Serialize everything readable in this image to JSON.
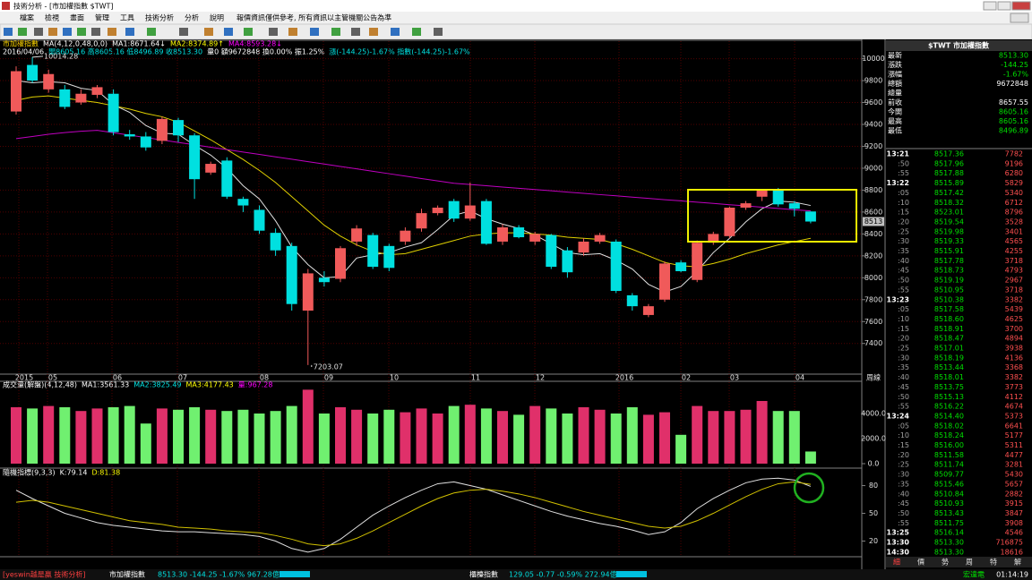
{
  "window": {
    "title": "技術分析 - [市加權指數 $TWT]",
    "menu": [
      "檔案",
      "檢視",
      "畫面",
      "管理",
      "工具",
      "技術分析",
      "分析",
      "說明"
    ],
    "notice": "報價資訊僅供參考, 所有資訊以主管機關公告為準"
  },
  "chart_data": [
    {
      "type": "candlestick",
      "legend": [
        {
          "text": "市加權指數",
          "color": "#ffd700"
        },
        {
          "text": "MA(4,12,0,48,0,0)",
          "color": "#ffffff"
        },
        {
          "text": "MA1:8671.64↓",
          "color": "#ffffff"
        },
        {
          "text": "MA2:8374.89↑",
          "color": "#ffff00"
        },
        {
          "text": "MA4:8593.28↓",
          "color": "#ff00ff"
        }
      ],
      "info": [
        {
          "text": "2016/04/06",
          "color": "#ffffff"
        },
        {
          "text": "開8605.16 高8605.16 低8496.89 收8513.30",
          "color": "#00e0e0"
        },
        {
          "text": "量0 額9672848 換0.00% 振1.25%",
          "color": "#ffffff"
        },
        {
          "text": "漲(-144.25)-1.67% 指數(-144.25)-1.67%",
          "color": "#00e0e0"
        }
      ],
      "x_labels": [
        "2015",
        "05",
        "06",
        "07",
        "08",
        "09",
        "10",
        "11",
        "12",
        "2016",
        "02",
        "03",
        "04"
      ],
      "ylim": [
        7120,
        10160
      ],
      "yticks": [
        7400,
        7600,
        7800,
        8000,
        8200,
        8400,
        8600,
        8800,
        9000,
        9200,
        9400,
        9600,
        9800,
        10000
      ],
      "grid": true,
      "up_color": "#f05a5a",
      "down_color": "#00e0e0",
      "open": [
        9518,
        9943,
        9720,
        9720,
        9600,
        9670,
        9680,
        9310,
        9290,
        9250,
        9440,
        9300,
        8960,
        9070,
        8720,
        8620,
        8410,
        8290,
        7700,
        8000,
        7990,
        8330,
        8390,
        8290,
        8330,
        8450,
        8590,
        8700,
        8540,
        8700,
        8330,
        8460,
        8330,
        8390,
        8250,
        8230,
        8330,
        8330,
        7840,
        7660,
        7800,
        8140,
        7980,
        8320,
        8380,
        8640,
        8740,
        8800,
        8680,
        8605.16
      ],
      "high": [
        9930,
        10014.28,
        9900,
        9760,
        9720,
        9760,
        9720,
        9350,
        9330,
        9470,
        9460,
        9320,
        9060,
        9100,
        8740,
        8660,
        8450,
        8320,
        8080,
        8060,
        8290,
        8480,
        8410,
        8310,
        8460,
        8630,
        8660,
        8720,
        8870,
        8720,
        8490,
        8480,
        8420,
        8400,
        8280,
        8360,
        8410,
        8350,
        7860,
        7760,
        8150,
        8160,
        8340,
        8420,
        8650,
        8700,
        8810,
        8820,
        8700,
        8605.16
      ],
      "low": [
        9490,
        9780,
        9690,
        9540,
        9580,
        9640,
        9300,
        9260,
        9160,
        9220,
        9240,
        8720,
        8940,
        8720,
        8600,
        8400,
        8200,
        7700,
        7203.07,
        7920,
        7960,
        8290,
        8080,
        8060,
        8300,
        8420,
        8570,
        8510,
        8520,
        8300,
        8300,
        8360,
        8300,
        8080,
        8000,
        8200,
        8310,
        7860,
        7700,
        7640,
        7780,
        8050,
        7960,
        8300,
        8360,
        8620,
        8700,
        8650,
        8560,
        8496.89
      ],
      "close": [
        9886,
        9800,
        9860,
        9560,
        9680,
        9740,
        9330,
        9290,
        9190,
        9450,
        9300,
        8900,
        9040,
        8740,
        8660,
        8430,
        8250,
        7760,
        8040,
        7960,
        8270,
        8450,
        8100,
        8090,
        8430,
        8590,
        8640,
        8540,
        8660,
        8310,
        8460,
        8370,
        8400,
        8100,
        8050,
        8330,
        8390,
        7880,
        7740,
        7740,
        8130,
        8060,
        8320,
        8400,
        8640,
        8680,
        8800,
        8670,
        8630,
        8513.3
      ],
      "series": [
        {
          "color": "#e0e0e0",
          "values": [
            9800,
            9780,
            9790,
            9780,
            9730,
            9710,
            9580,
            9510,
            9390,
            9320,
            9310,
            9210,
            9120,
            9000,
            8840,
            8720,
            8520,
            8280,
            8120,
            8000,
            8010,
            8180,
            8210,
            8230,
            8280,
            8320,
            8440,
            8570,
            8610,
            8540,
            8490,
            8450,
            8390,
            8310,
            8230,
            8210,
            8220,
            8160,
            8080,
            7940,
            7870,
            7920,
            8060,
            8230,
            8360,
            8510,
            8630,
            8700,
            8690,
            8660
          ]
        },
        {
          "color": "#e0d000",
          "values": [
            9620,
            9650,
            9660,
            9640,
            9620,
            9600,
            9570,
            9540,
            9500,
            9470,
            9420,
            9340,
            9260,
            9170,
            9080,
            8980,
            8870,
            8740,
            8610,
            8480,
            8380,
            8300,
            8240,
            8210,
            8220,
            8260,
            8300,
            8340,
            8380,
            8400,
            8410,
            8410,
            8400,
            8390,
            8370,
            8360,
            8350,
            8310,
            8260,
            8200,
            8140,
            8110,
            8100,
            8130,
            8170,
            8220,
            8260,
            8300,
            8330,
            8360
          ]
        },
        {
          "color": "#c000c0",
          "values": [
            9270,
            9290,
            9310,
            9325,
            9338,
            9346,
            9324,
            9302,
            9280,
            9258,
            9236,
            9214,
            9192,
            9170,
            9148,
            9126,
            9104,
            9082,
            9060,
            9038,
            9016,
            8994,
            8972,
            8950,
            8928,
            8906,
            8884,
            8863,
            8851,
            8840,
            8828,
            8817,
            8805,
            8794,
            8782,
            8771,
            8759,
            8748,
            8736,
            8725,
            8713,
            8702,
            8690,
            8679,
            8667,
            8656,
            8644,
            8633,
            8621,
            8610
          ]
        }
      ],
      "annotations": [
        10014.28,
        7203.07
      ],
      "axis_price_label": "8513",
      "axis_title": "周線"
    },
    {
      "type": "bar",
      "legend": [
        {
          "text": "成交量(解盤)(4,12,48)",
          "color": "#ffffff"
        },
        {
          "text": "MA1:3561.33",
          "color": "#ffffff"
        },
        {
          "text": "MA2:3825.49",
          "color": "#00e0e0"
        },
        {
          "text": "MA3:4177.43",
          "color": "#ffff00"
        },
        {
          "text": "量:967.28",
          "color": "#ff00ff"
        }
      ],
      "ylim": [
        0,
        6570
      ],
      "yticks": [
        {
          "value": 0,
          "label": "0.0"
        },
        {
          "value": 2000,
          "label": "2000.0"
        },
        {
          "value": 4000,
          "label": "4000.0"
        }
      ],
      "up_color": "#e0306a",
      "down_color": "#70f070",
      "values": [
        4500,
        4400,
        4600,
        4500,
        4200,
        4400,
        4500,
        4600,
        3200,
        4400,
        4300,
        4500,
        4300,
        4200,
        4300,
        4000,
        4200,
        4600,
        5900,
        4000,
        4500,
        4300,
        4000,
        4300,
        4100,
        4400,
        4000,
        4600,
        4700,
        4400,
        4200,
        3900,
        4600,
        4400,
        4000,
        4500,
        4300,
        4000,
        4500,
        3900,
        4100,
        2300,
        4600,
        4200,
        4200,
        4300,
        5000,
        4200,
        4200,
        967.28
      ]
    },
    {
      "type": "line",
      "legend": [
        {
          "text": "隨機指標(9,3,3)",
          "color": "#ffffff"
        },
        {
          "text": "K:79.14",
          "color": "#ffffff"
        },
        {
          "text": "D:81.38",
          "color": "#ffff00"
        }
      ],
      "ylim": [
        5,
        96
      ],
      "yticks": [
        20,
        50,
        80
      ],
      "series": [
        {
          "color": "#e0e0e0",
          "values": [
            75,
            66,
            58,
            50,
            45,
            40,
            37,
            35,
            33,
            31,
            30,
            30,
            29,
            28,
            27,
            25,
            20,
            12,
            8,
            12,
            22,
            35,
            48,
            58,
            67,
            75,
            82,
            84,
            80,
            76,
            70,
            64,
            58,
            52,
            47,
            43,
            39,
            36,
            32,
            27,
            30,
            40,
            55,
            66,
            75,
            83,
            87,
            88,
            86,
            79.14
          ]
        },
        {
          "color": "#d0c000",
          "values": [
            62,
            64,
            62,
            58,
            54,
            50,
            46,
            42,
            40,
            38,
            35,
            34,
            33,
            31,
            30,
            29,
            26,
            22,
            17,
            15,
            17,
            23,
            31,
            40,
            49,
            58,
            66,
            72,
            75,
            76,
            74,
            71,
            67,
            62,
            57,
            52,
            48,
            44,
            40,
            36,
            34,
            36,
            42,
            50,
            59,
            68,
            76,
            82,
            84,
            81.38
          ]
        }
      ]
    }
  ],
  "quote_panel": {
    "title": "$TWT 市加權指數",
    "rows": [
      {
        "label": "最新",
        "value": "8513.30",
        "color": "#00e000"
      },
      {
        "label": "漲跌",
        "value": "-144.25",
        "color": "#00e000"
      },
      {
        "label": "漲幅",
        "value": "-1.67%",
        "color": "#00e000"
      },
      {
        "label": "總額",
        "value": "9672848",
        "color": "#ffffff"
      },
      {
        "label": "總量",
        "value": null,
        "color": "#ffffff"
      },
      {
        "label": "前收",
        "value": "8657.55",
        "color": "#ffffff"
      },
      {
        "label": "今開",
        "value": "8605.16",
        "color": "#00e000"
      },
      {
        "label": "最高",
        "value": "8605.16",
        "color": "#00e000"
      },
      {
        "label": "最低",
        "value": "8496.89",
        "color": "#00e000"
      }
    ],
    "ticks": [
      [
        "13:21",
        "8517.36",
        "7782"
      ],
      [
        ":50",
        "8517.96",
        "9196"
      ],
      [
        ":55",
        "8517.88",
        "6280"
      ],
      [
        "13:22",
        "8515.89",
        "5829"
      ],
      [
        ":05",
        "8517.42",
        "5340"
      ],
      [
        ":10",
        "8518.32",
        "6712"
      ],
      [
        ":15",
        "8523.01",
        "8796"
      ],
      [
        ":20",
        "8519.54",
        "3528"
      ],
      [
        ":25",
        "8519.98",
        "3401"
      ],
      [
        ":30",
        "8519.33",
        "4565"
      ],
      [
        ":35",
        "8515.91",
        "4255"
      ],
      [
        ":40",
        "8517.78",
        "3718"
      ],
      [
        ":45",
        "8518.73",
        "4793"
      ],
      [
        ":50",
        "8519.19",
        "2967"
      ],
      [
        ":55",
        "8510.95",
        "3718"
      ],
      [
        "13:23",
        "8510.38",
        "3382"
      ],
      [
        ":05",
        "8517.58",
        "5439"
      ],
      [
        ":10",
        "8518.60",
        "4625"
      ],
      [
        ":15",
        "8518.91",
        "3700"
      ],
      [
        ":20",
        "8518.47",
        "4894"
      ],
      [
        ":25",
        "8517.01",
        "3938"
      ],
      [
        ":30",
        "8518.19",
        "4136"
      ],
      [
        ":35",
        "8513.44",
        "3368"
      ],
      [
        ":40",
        "8518.01",
        "3382"
      ],
      [
        ":45",
        "8513.75",
        "3773"
      ],
      [
        ":50",
        "8515.13",
        "4112"
      ],
      [
        ":55",
        "8516.22",
        "4674"
      ],
      [
        "13:24",
        "8514.40",
        "5373"
      ],
      [
        ":05",
        "8518.02",
        "6641"
      ],
      [
        ":10",
        "8518.24",
        "5177"
      ],
      [
        ":15",
        "8516.00",
        "5311"
      ],
      [
        ":20",
        "8511.58",
        "4477"
      ],
      [
        ":25",
        "8511.74",
        "3281"
      ],
      [
        ":30",
        "8509.77",
        "5430"
      ],
      [
        ":35",
        "8515.46",
        "5657"
      ],
      [
        ":40",
        "8510.84",
        "2882"
      ],
      [
        ":45",
        "8510.93",
        "3915"
      ],
      [
        ":50",
        "8513.43",
        "3847"
      ],
      [
        ":55",
        "8511.75",
        "3908"
      ],
      [
        "13:25",
        "8516.14",
        "4546"
      ],
      [
        "13:30",
        "8513.30",
        "716875"
      ],
      [
        "14:30",
        "8513.30",
        "18616"
      ]
    ],
    "tabs": [
      "細",
      "價",
      "勢",
      "周",
      "特",
      "解"
    ]
  },
  "status_bar": {
    "brand": "[yeswin越是贏 技術分析]",
    "index1": "市加權指數",
    "index1_quote": "8513.30 -144.25 -1.67% 967.28億",
    "index2": "櫃檯指數",
    "index2_quote": "129.05 -0.77 -0.59% 272.94億",
    "stock": "宏達電",
    "clock": "01:14:19"
  }
}
